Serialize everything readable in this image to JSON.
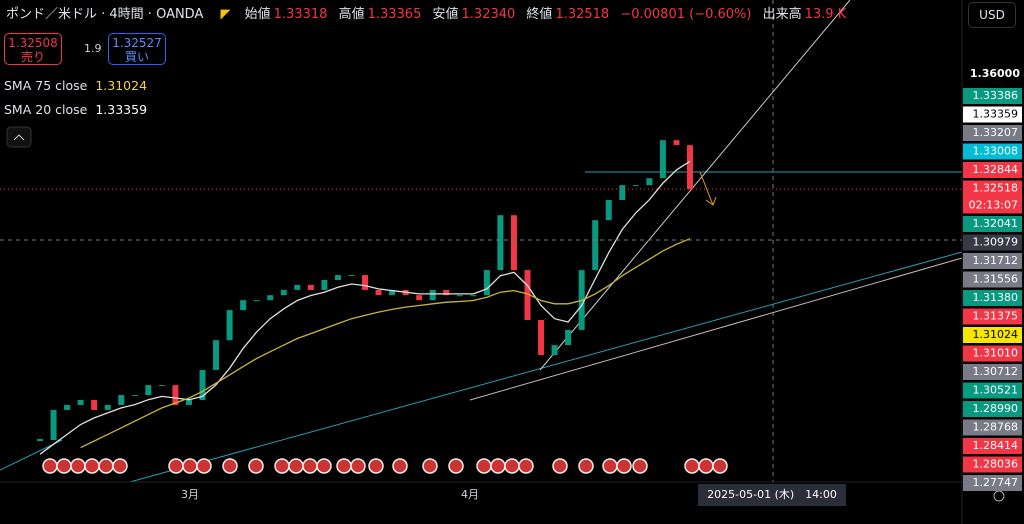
{
  "header": {
    "symbol": "ポンド／米ドル · 4時間 · OANDA",
    "open_label": "始値",
    "open": "1.33318",
    "high_label": "高値",
    "high": "1.33365",
    "low_label": "安値",
    "low": "1.32340",
    "close_label": "終値",
    "close": "1.32518",
    "change": "−0.00801 (−0.60%)",
    "volume_label": "出来高",
    "volume": "13.9 K",
    "currency": "USD"
  },
  "trade": {
    "sell_price": "1.32508",
    "sell_label": "売り",
    "spread": "1.9",
    "buy_price": "1.32527",
    "buy_label": "買い"
  },
  "indicators": [
    {
      "name": "SMA 75 close",
      "value": "1.31024",
      "color": "#f7d046"
    },
    {
      "name": "SMA 20 close",
      "value": "1.33359",
      "color": "#ffffff"
    }
  ],
  "chart": {
    "type": "candlestick",
    "ylim": [
      1.2366,
      1.3824
    ],
    "yticks": [
      {
        "value": 1.36,
        "label": "1.36000"
      }
    ],
    "x_labels": [
      "3月",
      "4月"
    ],
    "crosshair_label": "2025-05-01 (木)　14:00",
    "closes": [
      1.2493,
      1.2584,
      1.2599,
      1.2614,
      1.2584,
      1.2599,
      1.2629,
      1.2629,
      1.2659,
      1.2659,
      1.2599,
      1.2614,
      1.2705,
      1.2795,
      1.2886,
      1.2916,
      1.2916,
      1.2931,
      1.2947,
      1.2962,
      1.2947,
      1.2977,
      1.2992,
      1.2992,
      1.2947,
      1.2931,
      1.2947,
      1.2931,
      1.2916,
      1.2947,
      1.2931,
      1.2931,
      1.2931,
      1.3007,
      1.3173,
      1.3007,
      1.2856,
      1.275,
      1.278,
      1.2826,
      1.3007,
      1.3158,
      1.3219,
      1.3264,
      1.3264,
      1.3285,
      1.34,
      1.3385,
      1.3252
    ],
    "up_color": "#089981",
    "down_color": "#f23645",
    "series": [
      {
        "name": "SMA 20 close",
        "color": "#e0e0e0",
        "values": [
          1.245,
          1.248,
          1.251,
          1.254,
          1.256,
          1.2575,
          1.259,
          1.26,
          1.2615,
          1.2625,
          1.262,
          1.2615,
          1.2625,
          1.266,
          1.271,
          1.277,
          1.282,
          1.286,
          1.289,
          1.2915,
          1.293,
          1.294,
          1.2955,
          1.2965,
          1.296,
          1.295,
          1.2945,
          1.294,
          1.2935,
          1.2935,
          1.2935,
          1.2935,
          1.2935,
          1.295,
          1.299,
          1.3,
          1.296,
          1.29,
          1.286,
          1.285,
          1.29,
          1.298,
          1.306,
          1.313,
          1.318,
          1.322,
          1.327,
          1.331,
          1.3336
        ]
      },
      {
        "name": "SMA 75 close",
        "color": "#c9b53a",
        "values": [
          null,
          null,
          null,
          1.247,
          1.249,
          1.251,
          1.253,
          1.255,
          1.257,
          1.259,
          1.2605,
          1.262,
          1.264,
          1.2665,
          1.269,
          1.2715,
          1.274,
          1.276,
          1.278,
          1.28,
          1.2815,
          1.283,
          1.2845,
          1.286,
          1.287,
          1.288,
          1.2888,
          1.2895,
          1.29,
          1.2905,
          1.291,
          1.2912,
          1.2915,
          1.2925,
          1.294,
          1.2945,
          1.2935,
          1.2915,
          1.2905,
          1.2905,
          1.2915,
          1.2935,
          1.296,
          1.299,
          1.3015,
          1.304,
          1.3065,
          1.3085,
          1.3102
        ]
      }
    ],
    "price_labels": [
      {
        "label": "1.33386",
        "color": "#089981"
      },
      {
        "label": "1.33359",
        "color": "#ffffff"
      },
      {
        "label": "1.33207",
        "color": "#787b86"
      },
      {
        "label": "1.33008",
        "color": "#00bcd4"
      },
      {
        "label": "1.32844",
        "color": "#f23645"
      },
      {
        "label": "1.32518",
        "color": "#f23645"
      },
      {
        "label": "1.32041",
        "color": "#089981"
      },
      {
        "label": "1.30979",
        "color": "#363a45"
      },
      {
        "label": "1.31712",
        "color": "#787b86"
      },
      {
        "label": "1.31556",
        "color": "#787b86"
      },
      {
        "label": "1.31380",
        "color": "#089981"
      },
      {
        "label": "1.31375",
        "color": "#f23645"
      },
      {
        "label": "1.31024",
        "color": "#f7e600"
      },
      {
        "label": "1.31010",
        "color": "#f23645"
      },
      {
        "label": "1.30712",
        "color": "#787b86"
      },
      {
        "label": "1.30521",
        "color": "#089981"
      },
      {
        "label": "1.28990",
        "color": "#089981"
      },
      {
        "label": "1.28768",
        "color": "#787b86"
      },
      {
        "label": "1.28414",
        "color": "#f23645"
      },
      {
        "label": "1.28036",
        "color": "#f23645"
      },
      {
        "label": "1.27747",
        "color": "#787b86"
      }
    ],
    "countdown": "02:13:07"
  }
}
